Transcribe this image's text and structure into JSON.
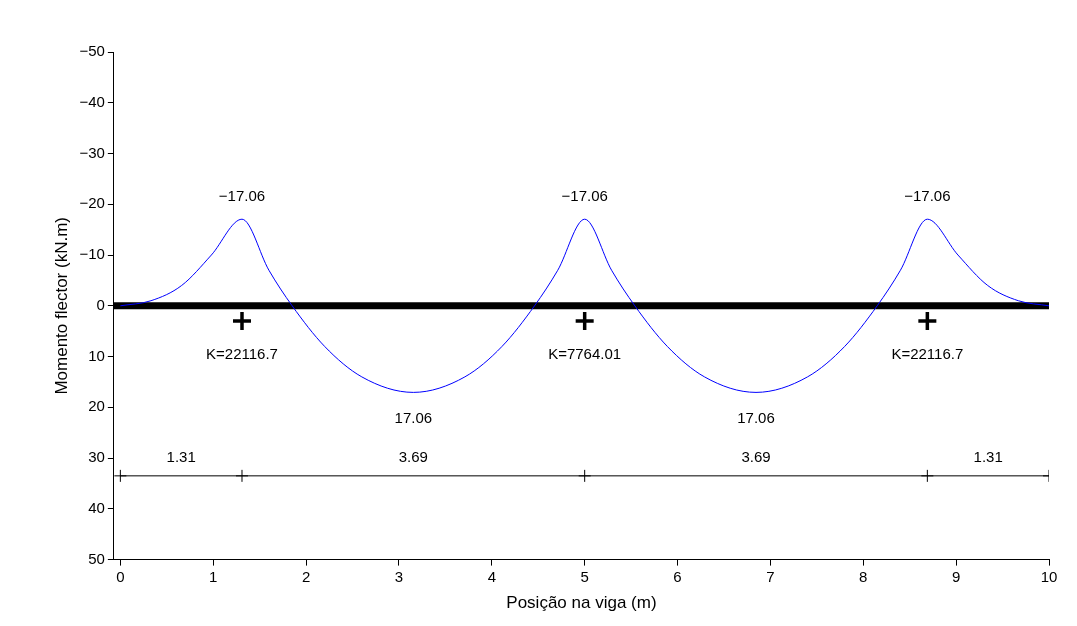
{
  "chart_data": {
    "type": "line",
    "xlabel": "Posição na viga (m)",
    "ylabel": "Momento flector (kN.m)",
    "xlim": [
      -0.07,
      10
    ],
    "xticks": [
      0,
      1,
      2,
      3,
      4,
      5,
      6,
      7,
      8,
      9,
      10
    ],
    "ylim": [
      50,
      -50
    ],
    "yticks": [
      {
        "value": -50,
        "label": "−50"
      },
      {
        "value": -40,
        "label": "−40"
      },
      {
        "value": -30,
        "label": "−30"
      },
      {
        "value": -20,
        "label": "−20"
      },
      {
        "value": -10,
        "label": "−10"
      },
      0,
      10,
      20,
      30,
      40,
      50
    ],
    "grid": false,
    "legend": false,
    "series": [
      {
        "color": "#0000ff",
        "marker": "none",
        "x": [
          0,
          0.33,
          0.66,
          0.98,
          1.31,
          1.6,
          1.85,
          2.2,
          2.6,
          3.155,
          3.71,
          4.11,
          4.46,
          4.71,
          5,
          5.29,
          5.54,
          5.89,
          6.29,
          6.845,
          7.4,
          7.8,
          8.15,
          8.4,
          8.69,
          9.02,
          9.34,
          9.67,
          10
        ],
        "values": [
          0,
          -1,
          -4,
          -10,
          -17.06,
          -7,
          0,
          8,
          14,
          17.06,
          14,
          8,
          0,
          -7,
          -17.06,
          -7,
          0,
          8,
          14,
          17.06,
          14,
          8,
          0,
          -7,
          -17.06,
          -10,
          -4,
          -1,
          0
        ]
      },
      {
        "type": "scatter",
        "color": "#000000",
        "marker": "cross",
        "x": [
          1.31,
          5,
          8.69
        ],
        "values": [
          3,
          3,
          3
        ]
      },
      {
        "color": "#000000",
        "marker": "cross",
        "x": [
          0,
          1.31,
          5,
          8.69,
          10
        ],
        "values": [
          33.5,
          33.5,
          33.5,
          33.5,
          33.5
        ]
      }
    ],
    "bands": [
      {
        "axis": "y",
        "from": -0.7,
        "to": 0.7,
        "color": "#000000"
      }
    ],
    "annotations": [
      {
        "text": "−17.06",
        "x": 1.31,
        "y": -17.06
      },
      {
        "text": "−17.06",
        "x": 5,
        "y": -17.06
      },
      {
        "text": "−17.06",
        "x": 8.69,
        "y": -17.06
      },
      {
        "text": "17.06",
        "x": 3.155,
        "y": 17.06
      },
      {
        "text": "17.06",
        "x": 6.845,
        "y": 17.06
      },
      {
        "text": "K=22116.7",
        "x": 1.31,
        "y": 3
      },
      {
        "text": "K=7764.01",
        "x": 5,
        "y": 3
      },
      {
        "text": "K=22116.7",
        "x": 8.69,
        "y": 3
      },
      {
        "text": "1.31",
        "x": 0.655,
        "y": 33.5
      },
      {
        "text": "3.69",
        "x": 3.155,
        "y": 33.5
      },
      {
        "text": "3.69",
        "x": 6.845,
        "y": 33.5
      },
      {
        "text": "1.31",
        "x": 9.345,
        "y": 33.5
      }
    ]
  }
}
